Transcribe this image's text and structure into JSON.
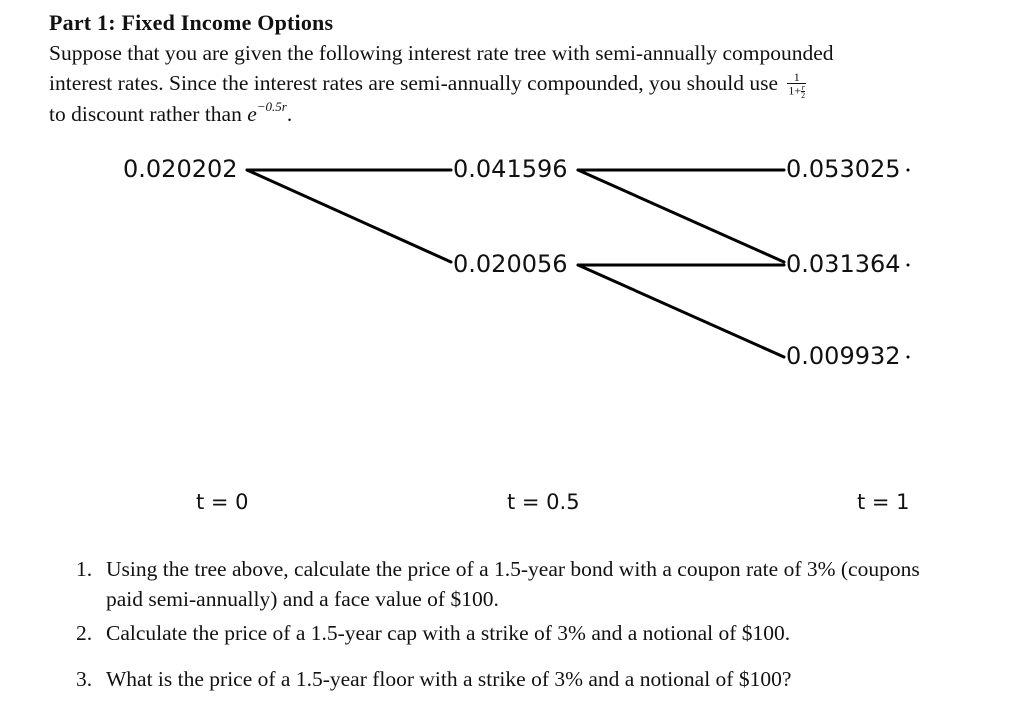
{
  "heading": "Part 1: Fixed Income Options",
  "intro": {
    "line1": "Suppose that you are given the following interest rate tree with semi-annually compounded",
    "line2": "interest rates. Since the interest rates are semi-annually compounded, you should use",
    "frac_num": "1",
    "frac_den_left": "1+",
    "frac_den_r": "r",
    "frac_den_2": "2",
    "line3_pre": "to discount rather than ",
    "e": "e",
    "exponent": "−0.5r",
    "line3_post": "."
  },
  "tree": {
    "nodes": {
      "n0": "0.020202",
      "n1u": "0.041596",
      "n1d": "0.020056",
      "n2uu": "0.053025",
      "n2ud": "0.031364",
      "n2dd": "0.009932"
    },
    "times": [
      "t = 0",
      "t = 0.5",
      "t = 1"
    ]
  },
  "questions": [
    {
      "num": "1.",
      "text": "Using the tree above, calculate the price of a 1.5-year bond with a coupon rate of 3% (coupons paid semi-annually) and a face value of $100."
    },
    {
      "num": "2.",
      "text": "Calculate the price of a 1.5-year cap with a strike of 3% and a notional of $100."
    },
    {
      "num": "3.",
      "text": "What is the price of a 1.5-year floor with a strike of 3% and a notional of $100?"
    }
  ]
}
